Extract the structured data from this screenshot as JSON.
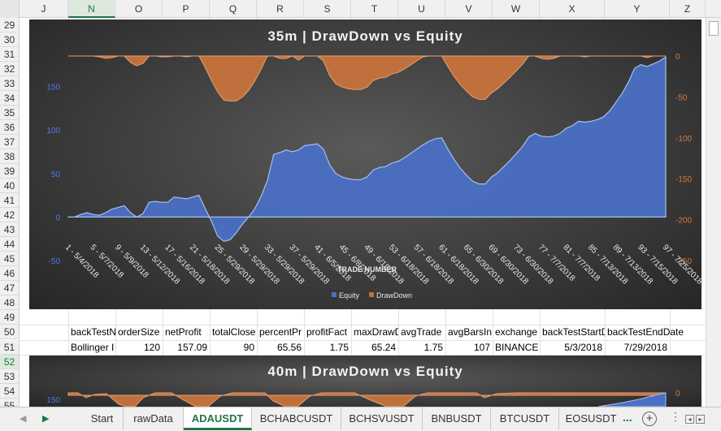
{
  "columns": [
    "J",
    "N",
    "O",
    "P",
    "Q",
    "R",
    "S",
    "T",
    "U",
    "V",
    "W",
    "X",
    "Y",
    "Z"
  ],
  "selected_column": "N",
  "rows": [
    "29",
    "30",
    "31",
    "32",
    "33",
    "34",
    "35",
    "36",
    "37",
    "38",
    "39",
    "40",
    "41",
    "42",
    "43",
    "44",
    "45",
    "46",
    "47",
    "48",
    "49",
    "50",
    "51",
    "52",
    "53",
    "54",
    "55"
  ],
  "selected_row": "52",
  "table": {
    "headers": [
      "backTestN",
      "orderSize",
      "netProfit",
      "totalClose",
      "percentPr",
      "profitFact",
      "maxDrawD",
      "avgTrade",
      "avgBarsIn",
      "exchange",
      "backTestStartD",
      "backTestEndDate"
    ],
    "values": [
      "Bollinger I",
      "120",
      "157.09",
      "90",
      "65.56",
      "1.75",
      "65.24",
      "1.75",
      "107",
      "BINANCE",
      "5/3/2018",
      "7/29/2018"
    ]
  },
  "chart1": {
    "title": "35m  | DrawDown vs Equity",
    "xlabel": "TRADE NUMBER",
    "legend": {
      "equity": "Equity",
      "drawdown": "DrawDown"
    }
  },
  "chart2": {
    "title": "40m  | DrawDown vs Equity",
    "left_tick": "150",
    "right_tick": "0"
  },
  "chart_data": {
    "type": "area",
    "title": "35m  | DrawDown vs Equity",
    "xlabel": "TRADE NUMBER",
    "y_left_ticks": [
      "-50",
      "0",
      "50",
      "100",
      "150"
    ],
    "y_right_ticks": [
      "0",
      "-50",
      "-100",
      "-150",
      "-200",
      "-250"
    ],
    "y_left_range": [
      -50,
      185
    ],
    "y_right_range": [
      -250,
      0
    ],
    "x_tick_labels": [
      "1 - 5/4/2018",
      "5 - 5/7/2018",
      "9 - 5/9/2018",
      "13 - 5/12/2018",
      "17 - 5/16/2018",
      "21 - 5/18/2018",
      "25 - 5/29/2018",
      "29 - 5/29/2018",
      "33 - 5/29/2018",
      "37 - 5/29/2018",
      "41 - 6/5/2018",
      "45 - 6/8/2018",
      "49 - 6/18/2018",
      "53 - 6/18/2018",
      "57 - 6/18/2018",
      "61 - 6/18/2018",
      "65 - 6/30/2018",
      "69 - 6/30/2018",
      "73 - 6/30/2018",
      "77 - 7/7/2018",
      "81 - 7/7/2018",
      "85 - 7/13/2018",
      "89 - 7/13/2018",
      "93 - 7/15/2018",
      "97 - 7/25/2018"
    ],
    "series": [
      {
        "name": "Equity",
        "color": "#4a6fc4",
        "axis": "left",
        "values": [
          0,
          0,
          3,
          5,
          3,
          2,
          5,
          9,
          11,
          13,
          5,
          0,
          4,
          17,
          18,
          17,
          17,
          23,
          22,
          21,
          23,
          25,
          10,
          -5,
          -22,
          -28,
          -26,
          -18,
          -8,
          0,
          10,
          24,
          42,
          72,
          74,
          77,
          75,
          77,
          82,
          83,
          84,
          78,
          60,
          50,
          46,
          44,
          43,
          43,
          46,
          54,
          57,
          58,
          62,
          64,
          68,
          73,
          78,
          83,
          87,
          90,
          91,
          78,
          66,
          56,
          48,
          41,
          38,
          38,
          46,
          51,
          58,
          65,
          73,
          81,
          92,
          96,
          93,
          92,
          93,
          96,
          102,
          105,
          110,
          109,
          110,
          112,
          115,
          122,
          132,
          142,
          155,
          171,
          175,
          173,
          176,
          179,
          184
        ]
      },
      {
        "name": "DrawDown",
        "color": "#c0703c",
        "axis": "right",
        "values": [
          0,
          0,
          0,
          0,
          0,
          -1,
          -3,
          -2,
          0,
          0,
          -8,
          -12,
          -9,
          0,
          0,
          -1,
          -1,
          0,
          0,
          -1,
          0,
          0,
          -14,
          -30,
          -44,
          -54,
          -55,
          -55,
          -50,
          -42,
          -30,
          -16,
          0,
          0,
          -3,
          -3,
          0,
          -5,
          0,
          0,
          0,
          -6,
          -24,
          -34,
          -38,
          -40,
          -41,
          -41,
          -38,
          -30,
          -27,
          -26,
          -22,
          -20,
          -16,
          -11,
          -6,
          -1,
          0,
          0,
          0,
          -13,
          -25,
          -35,
          -43,
          -50,
          -53,
          -53,
          -45,
          -40,
          -33,
          -26,
          -18,
          -10,
          0,
          0,
          -3,
          -4,
          -3,
          0,
          0,
          0,
          0,
          -1,
          0,
          0,
          0,
          0,
          0,
          0,
          0,
          0,
          0,
          -2,
          0,
          0,
          0
        ]
      }
    ]
  }
}
